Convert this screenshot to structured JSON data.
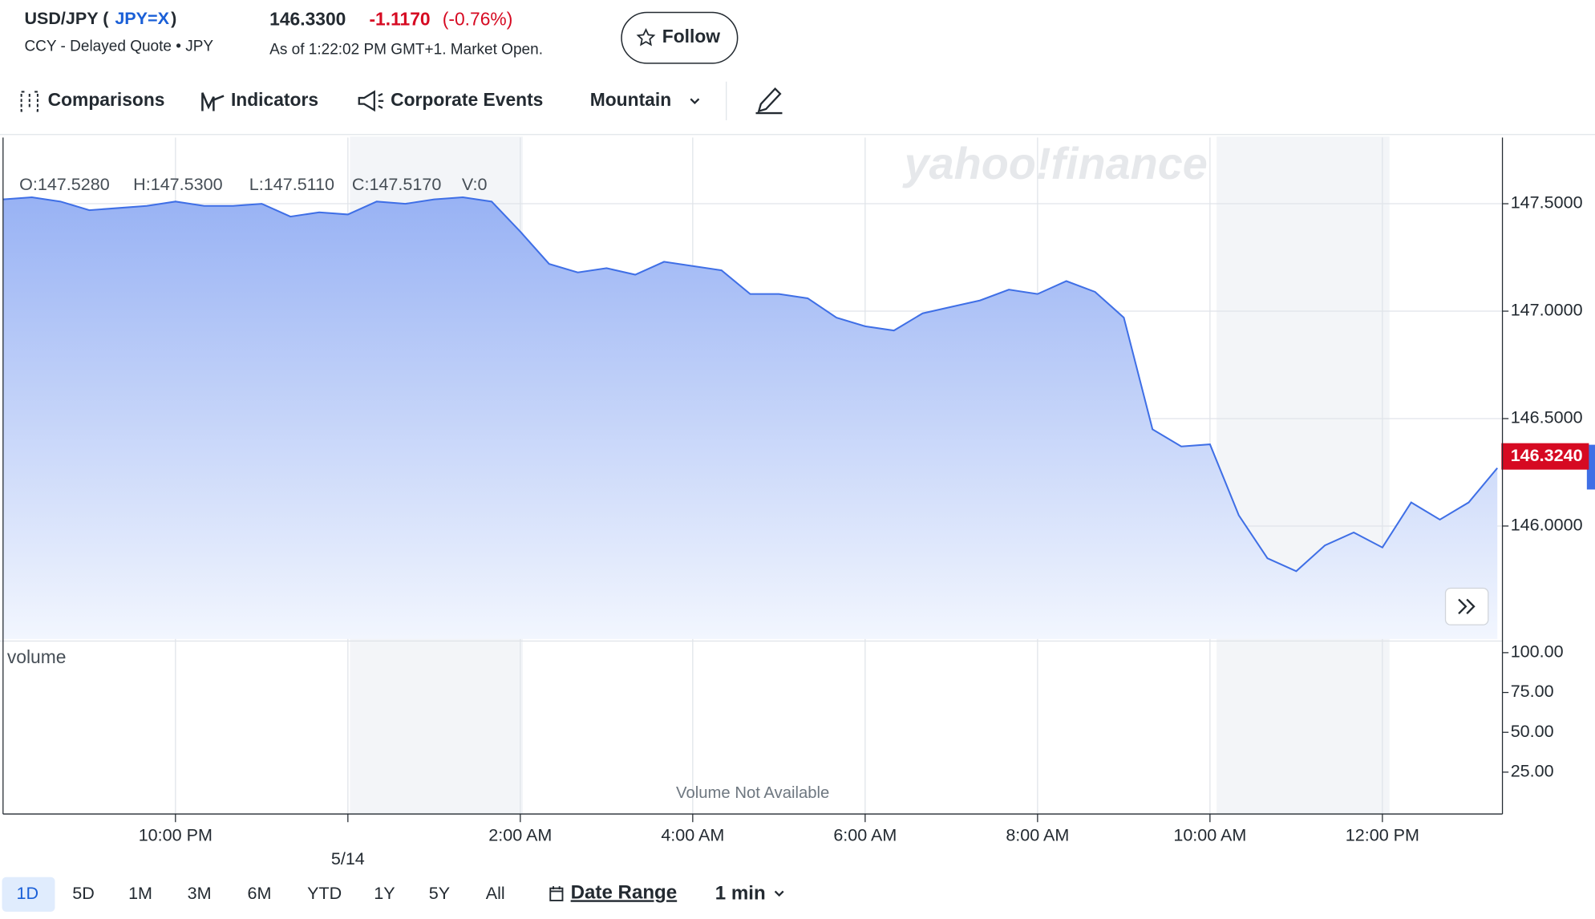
{
  "header": {
    "title": "USD/JPY (",
    "symbol": "JPY=X",
    "title_suffix": ")",
    "subtitle": "CCY - Delayed Quote • JPY",
    "price": "146.3300",
    "change": "-1.1170",
    "change_percent": "(-0.76%)",
    "as_of": "As of 1:22:02 PM GMT+1. Market Open.",
    "follow": "Follow"
  },
  "toolbar": [
    "Comparisons",
    "Indicators",
    "Corporate Events",
    "Mountain"
  ],
  "watermark": "yahoo!finance",
  "chart_data": [
    {
      "type": "line",
      "ohlc_legend": [
        "O:147.5280",
        "H:147.5300",
        "L:147.5110",
        "C:147.5170",
        "V:0"
      ],
      "categories": [
        null,
        null,
        null,
        null,
        null,
        null,
        "10:00 PM",
        null,
        null,
        null,
        null,
        null,
        "5/14",
        null,
        null,
        null,
        null,
        null,
        "2:00 AM",
        null,
        null,
        null,
        null,
        null,
        "4:00 AM",
        null,
        null,
        null,
        null,
        null,
        "6:00 AM",
        null,
        null,
        null,
        null,
        null,
        "8:00 AM",
        null,
        null,
        null,
        null,
        null,
        "10:00 AM",
        null,
        null,
        null,
        null,
        null,
        "12:00 PM",
        null,
        null,
        null,
        null
      ],
      "series": [
        {
          "name": "USD/JPY",
          "color": "#3f6fe6",
          "values": [
            147.52,
            147.53,
            147.51,
            147.47,
            147.48,
            147.49,
            147.51,
            147.49,
            147.49,
            147.5,
            147.44,
            147.46,
            147.45,
            147.51,
            147.5,
            147.52,
            147.53,
            147.51,
            147.37,
            147.22,
            147.18,
            147.2,
            147.17,
            147.23,
            147.21,
            147.19,
            147.08,
            147.08,
            147.06,
            146.97,
            146.93,
            146.91,
            146.99,
            147.02,
            147.05,
            147.1,
            147.08,
            147.14,
            147.09,
            146.97,
            146.45,
            146.37,
            146.38,
            146.05,
            145.85,
            145.79,
            145.91,
            145.97,
            145.9,
            146.11,
            146.03,
            146.11,
            146.27
          ]
        }
      ],
      "last_price": {
        "value": 146.324,
        "label": "146.3240"
      },
      "ylim": [
        145.474,
        147.808
      ],
      "yticks": [
        {
          "value": 146,
          "label": "146.0000"
        },
        {
          "value": 146.5,
          "label": "146.5000"
        },
        {
          "value": 147,
          "label": "147.0000"
        },
        {
          "value": 147.5,
          "label": "147.5000"
        }
      ],
      "grid": true
    },
    {
      "type": "bar",
      "legend": "volume",
      "annotation": "Volume Not Available",
      "ylim": [
        0,
        106
      ],
      "yticks": [
        {
          "value": 25,
          "label": "25.00"
        },
        {
          "value": 50,
          "label": "50.00"
        },
        {
          "value": 75,
          "label": "75.00"
        },
        {
          "value": 100,
          "label": "100.00"
        }
      ]
    }
  ],
  "ranges": [
    "1D",
    "5D",
    "1M",
    "3M",
    "6M",
    "YTD",
    "1Y",
    "5Y",
    "All"
  ],
  "date_range": "Date Range",
  "interval": "1 min"
}
